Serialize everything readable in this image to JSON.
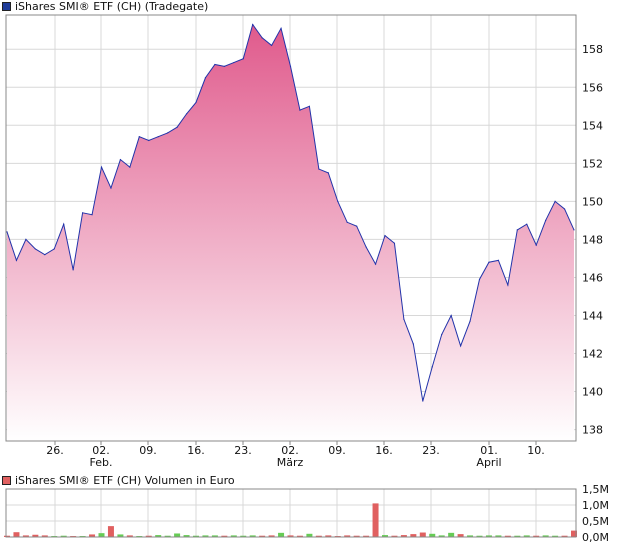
{
  "colors": {
    "line": "#2233aa",
    "fill_top": "#e05a8c",
    "fill_bottom": "#ffffff",
    "grid": "#d8d8d8",
    "frame": "#888888",
    "legend_price_swatch": "#1f3c99",
    "legend_volume_swatch": "#e06060",
    "volume_up": "#66cc55",
    "volume_down": "#e06060"
  },
  "chart_data": [
    {
      "type": "area",
      "legend": "iShares SMI® ETF (CH) (Tradegate)",
      "ylim": [
        137.4,
        159.8
      ],
      "yticks": [
        138,
        140,
        142,
        144,
        146,
        148,
        150,
        152,
        154,
        156,
        158
      ],
      "grid": true,
      "x_tick_labels": [
        "26.",
        "02.",
        "09.",
        "16.",
        "23.",
        "02.",
        "09.",
        "16.",
        "23.",
        "01.",
        "10."
      ],
      "x_month_labels": [
        {
          "label": "Feb.",
          "at_tick": 1
        },
        {
          "label": "März",
          "at_tick": 5
        },
        {
          "label": "April",
          "at_tick": 9
        }
      ],
      "series": [
        {
          "values": [
            148.4,
            146.9,
            148.0,
            147.5,
            147.2,
            147.5,
            148.8,
            146.4,
            149.4,
            149.3,
            151.8,
            150.7,
            152.2,
            151.8,
            153.4,
            153.2,
            153.4,
            153.6,
            153.9,
            154.6,
            155.2,
            156.5,
            157.2,
            157.1,
            157.3,
            157.5,
            159.3,
            158.6,
            158.2,
            159.1,
            157.1,
            154.8,
            155.0,
            151.7,
            151.5,
            150.0,
            148.9,
            148.7,
            147.6,
            146.7,
            148.2,
            147.8,
            143.8,
            142.5,
            139.5,
            141.3,
            143.0,
            144.0,
            142.4,
            143.7,
            145.9,
            146.8,
            146.9,
            145.6,
            148.5,
            148.8,
            147.7,
            149.0,
            150.0,
            149.6,
            148.5
          ]
        }
      ]
    },
    {
      "type": "bar",
      "legend": "iShares SMI® ETF (CH) Volumen in Euro",
      "ylim": [
        0,
        1.5
      ],
      "yticks": [
        "0,0M",
        "0,5M",
        "1,0M",
        "1,5M"
      ],
      "ytick_values": [
        0,
        0.5,
        1.0,
        1.5
      ],
      "grid": true,
      "series": [
        {
          "values": [
            0.04,
            0.15,
            0.05,
            0.07,
            0.05,
            0.03,
            0.04,
            0.03,
            0.03,
            0.08,
            0.12,
            0.34,
            0.08,
            0.05,
            0.03,
            0.04,
            0.06,
            0.04,
            0.11,
            0.06,
            0.04,
            0.05,
            0.05,
            0.04,
            0.05,
            0.04,
            0.05,
            0.04,
            0.05,
            0.13,
            0.05,
            0.04,
            0.1,
            0.04,
            0.05,
            0.03,
            0.05,
            0.04,
            0.04,
            1.05,
            0.06,
            0.04,
            0.06,
            0.09,
            0.14,
            0.1,
            0.05,
            0.13,
            0.09,
            0.05,
            0.04,
            0.05,
            0.05,
            0.04,
            0.04,
            0.05,
            0.04,
            0.05,
            0.04,
            0.04,
            0.2
          ],
          "up": [
            0,
            0,
            0,
            0,
            0,
            1,
            1,
            0,
            1,
            0,
            1,
            0,
            1,
            0,
            1,
            0,
            1,
            1,
            1,
            1,
            1,
            1,
            1,
            0,
            1,
            1,
            1,
            0,
            0,
            1,
            0,
            0,
            1,
            0,
            0,
            0,
            0,
            0,
            0,
            0,
            1,
            0,
            0,
            0,
            0,
            1,
            1,
            1,
            0,
            1,
            1,
            1,
            1,
            0,
            1,
            1,
            0,
            1,
            1,
            0,
            0
          ]
        }
      ]
    }
  ]
}
